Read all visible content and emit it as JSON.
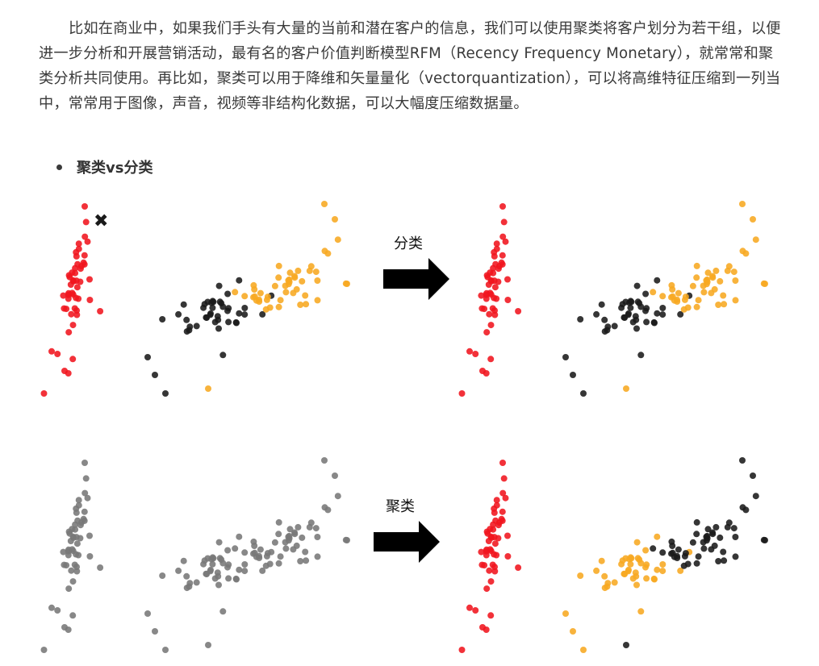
{
  "article": {
    "paragraph": "比如在商业中，如果我们手头有大量的当前和潜在客户的信息，我们可以使用聚类将客户划分为若干组，以便进一步分析和开展营销活动，最有名的客户价值判断模型RFM（Recency Frequency Monetary），就常常和聚类分析共同使用。再比如，聚类可以用于降维和矢量量化（vectorquantization），可以将高维特征压缩到一列当中，常常用于图像，声音，视频等非结构化数据，可以大幅度压缩数据量。",
    "bullet": "聚类vs分类"
  },
  "figure": {
    "label_classification": "分类",
    "label_clustering": "聚类",
    "colors": {
      "red": "#f0141e",
      "black": "#1a1a1a",
      "orange": "#f7a821",
      "gray": "#777777",
      "arrow": "#000000"
    },
    "icons": [
      "cross-marker-icon",
      "right-arrow-icon"
    ]
  }
}
